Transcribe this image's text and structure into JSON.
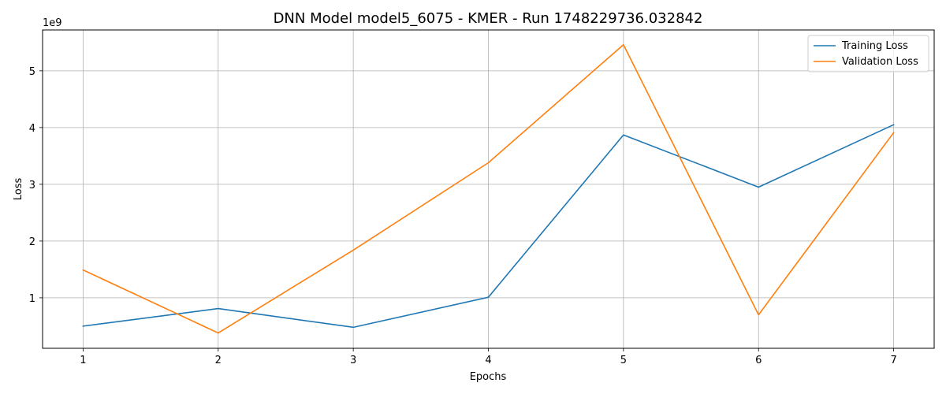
{
  "chart_data": {
    "type": "line",
    "title": "DNN Model model5_6075 - KMER - Run 1748229736.032842",
    "xlabel": "Epochs",
    "ylabel": "Loss",
    "y_multiplier_label": "1e9",
    "x": [
      1,
      2,
      3,
      4,
      5,
      6,
      7
    ],
    "x_ticks": [
      "1",
      "2",
      "3",
      "4",
      "5",
      "6",
      "7"
    ],
    "y_ticks": [
      "1",
      "2",
      "3",
      "4",
      "5"
    ],
    "xlim": [
      0.7,
      7.3
    ],
    "ylim": [
      0.11,
      5.72
    ],
    "grid": true,
    "legend_position": "top-right",
    "series": [
      {
        "name": "Training Loss",
        "color": "#1f77b4",
        "values": [
          0.5,
          0.81,
          0.48,
          1.01,
          3.87,
          2.95,
          4.05
        ]
      },
      {
        "name": "Validation Loss",
        "color": "#ff7f0e",
        "values": [
          1.49,
          0.38,
          1.84,
          3.38,
          5.46,
          0.7,
          3.91
        ]
      }
    ]
  }
}
